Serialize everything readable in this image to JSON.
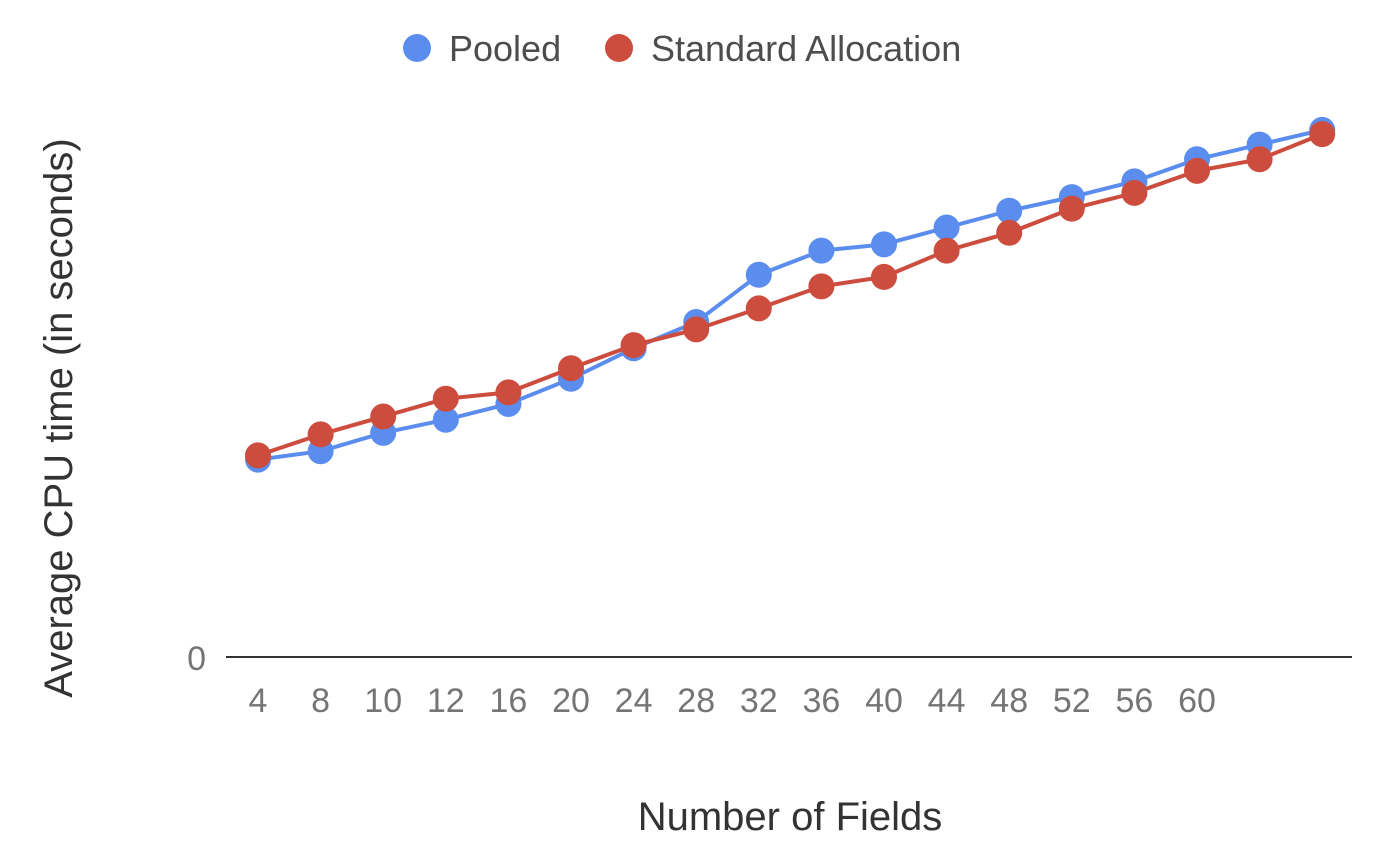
{
  "chart_data": {
    "type": "line",
    "title": "",
    "xlabel": "Number of Fields",
    "ylabel": "Average CPU time (in seconds)",
    "categories": [
      "4",
      "8",
      "10",
      "12",
      "16",
      "20",
      "24",
      "28",
      "32",
      "36",
      "40",
      "44",
      "48",
      "52",
      "56",
      "60",
      "",
      ""
    ],
    "y_tick_labels": [
      "0"
    ],
    "ylim": [
      0,
      100
    ],
    "legend": "top",
    "grid": false,
    "series": [
      {
        "name": "Pooled",
        "color": "#5b8def",
        "values": [
          37.6,
          39.2,
          42.7,
          45.2,
          48.2,
          53.0,
          58.8,
          63.8,
          72.8,
          77.4,
          78.6,
          81.8,
          85.0,
          87.6,
          90.6,
          94.8,
          97.6,
          100.4
        ]
      },
      {
        "name": "Standard Allocation",
        "color": "#cc4c3e",
        "values": [
          38.4,
          42.4,
          45.8,
          49.2,
          50.4,
          55.0,
          59.4,
          62.4,
          66.4,
          70.6,
          72.4,
          77.4,
          80.8,
          85.4,
          88.4,
          92.6,
          94.8,
          99.6
        ]
      }
    ]
  }
}
